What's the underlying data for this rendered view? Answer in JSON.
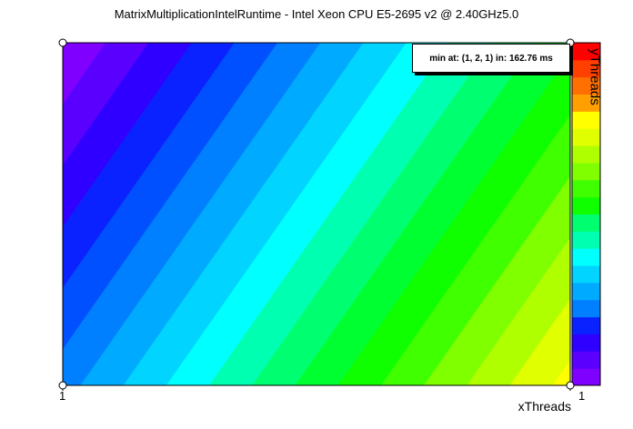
{
  "title": "MatrixMultiplicationIntelRuntime - Intel Xeon CPU E5-2695 v2 @ 2.40GHz5.0",
  "annotation": "min at: (1, 2, 1) in: 162.76 ms",
  "chart_data": {
    "type": "heatmap",
    "xlabel": "xThreads",
    "ylabel": "yThreads",
    "x_ticks": [
      "1",
      "1"
    ],
    "colorbar_levels": 20,
    "palette": [
      "#7f00ff",
      "#5a00ff",
      "#2f00ff",
      "#0a22ff",
      "#0050ff",
      "#0080ff",
      "#00aaff",
      "#00d4ff",
      "#00ffff",
      "#00ffb0",
      "#00ff70",
      "#00ff30",
      "#10ff00",
      "#40ff00",
      "#80ff00",
      "#b0ff00",
      "#e0ff00",
      "#ffff00",
      "#ffd000",
      "#ffa000",
      "#ff7000",
      "#ff4000",
      "#ff0000"
    ]
  }
}
